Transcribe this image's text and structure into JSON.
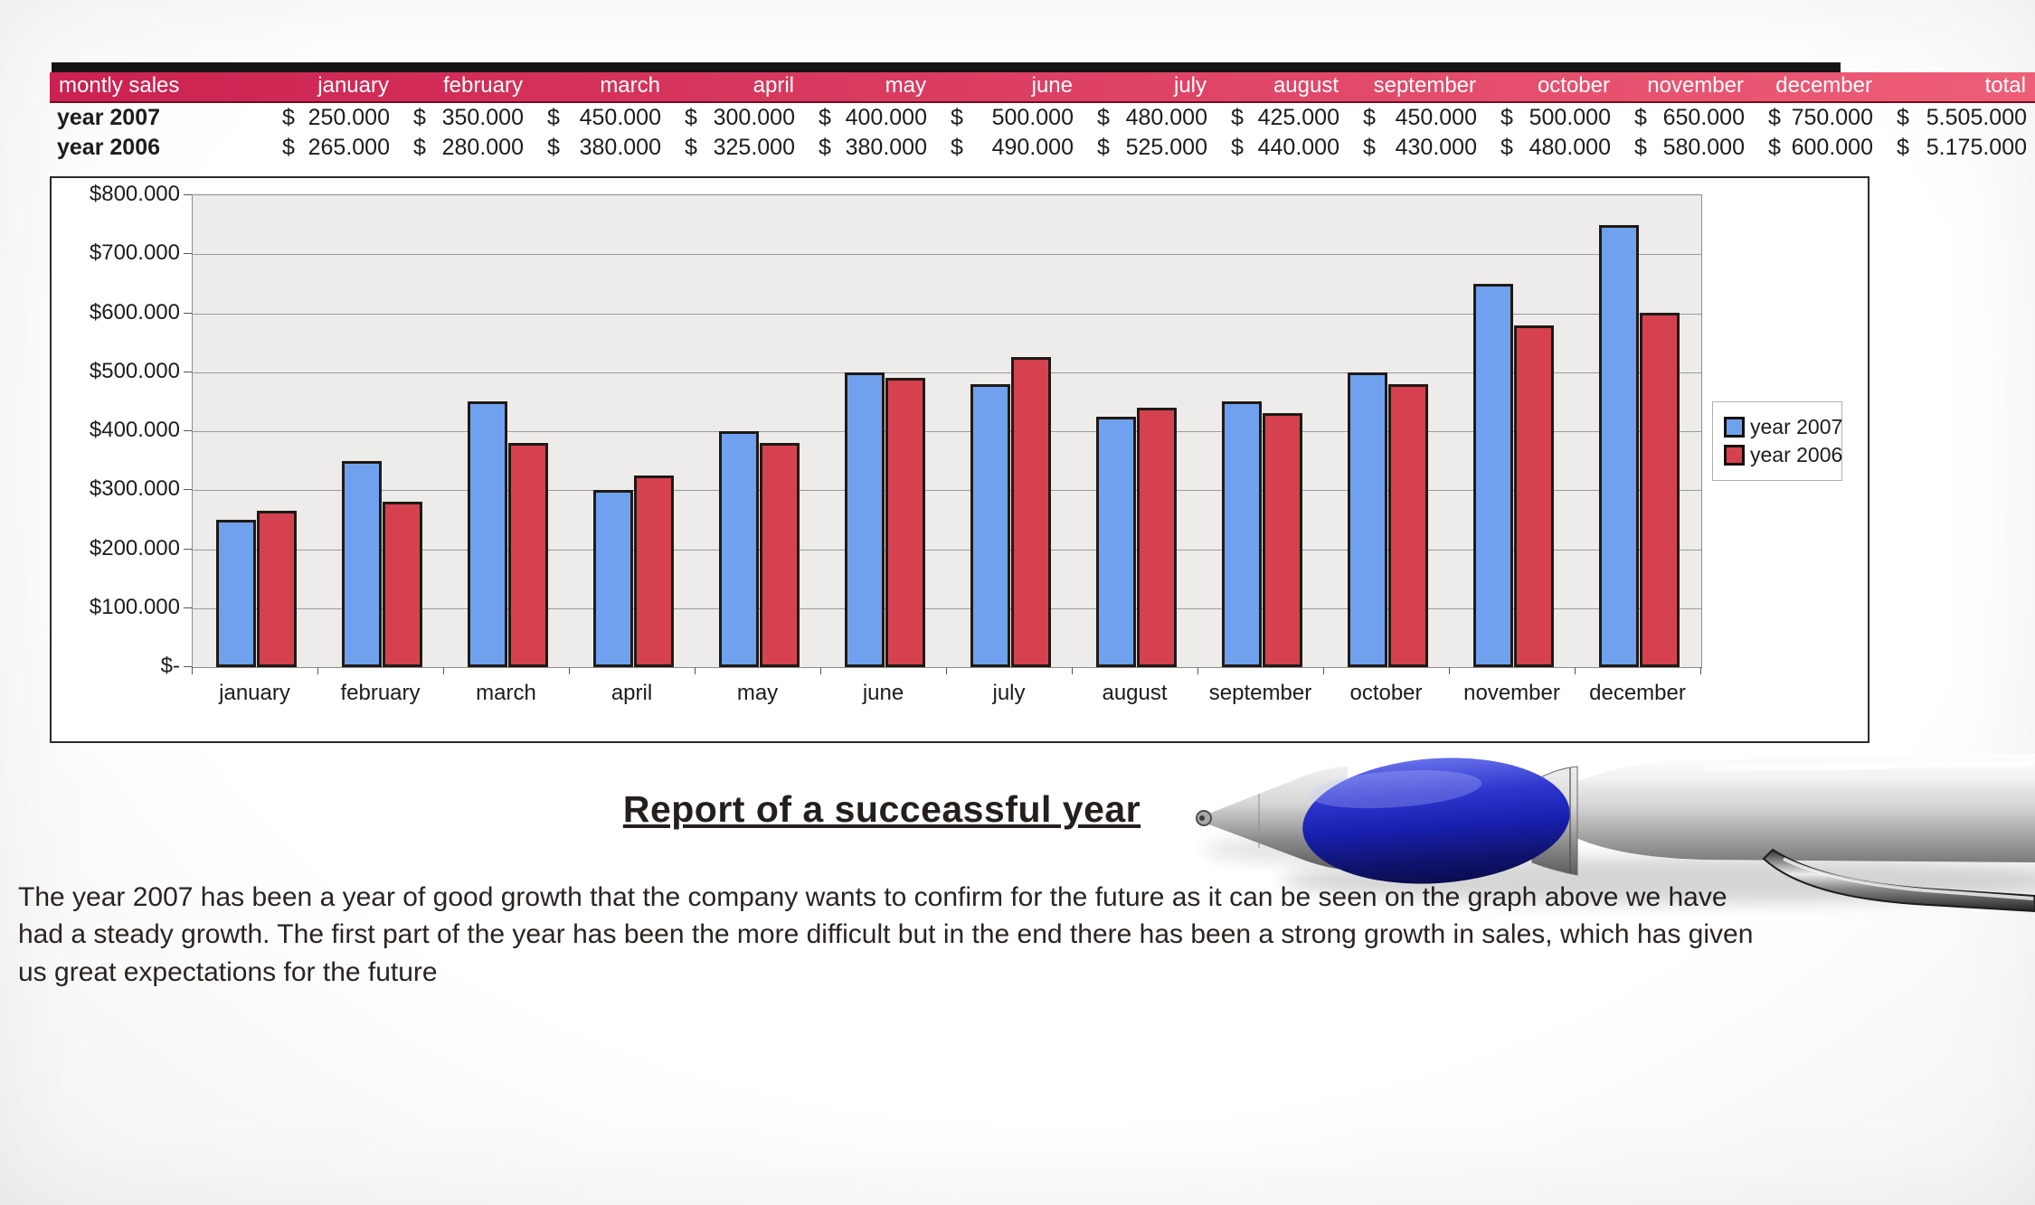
{
  "table": {
    "title_cell": "montly sales",
    "months": [
      "january",
      "february",
      "march",
      "april",
      "may",
      "june",
      "july",
      "august",
      "september",
      "october",
      "november",
      "december"
    ],
    "total_label": "total",
    "currency": "$",
    "rows": [
      {
        "label": "year 2007",
        "values": [
          "250.000",
          "350.000",
          "450.000",
          "300.000",
          "400.000",
          "500.000",
          "480.000",
          "425.000",
          "450.000",
          "500.000",
          "650.000",
          "750.000"
        ],
        "total": "5.505.000"
      },
      {
        "label": "year 2006",
        "values": [
          "265.000",
          "280.000",
          "380.000",
          "325.000",
          "380.000",
          "490.000",
          "525.000",
          "440.000",
          "430.000",
          "480.000",
          "580.000",
          "600.000"
        ],
        "total": "5.175.000"
      }
    ]
  },
  "chart_data": {
    "type": "bar",
    "categories": [
      "january",
      "february",
      "march",
      "april",
      "may",
      "june",
      "july",
      "august",
      "september",
      "october",
      "november",
      "december"
    ],
    "series": [
      {
        "name": "year 2007",
        "color": "#6fa1ee",
        "values": [
          250000,
          350000,
          450000,
          300000,
          400000,
          500000,
          480000,
          425000,
          450000,
          500000,
          650000,
          750000
        ]
      },
      {
        "name": "year 2006",
        "color": "#d6414f",
        "values": [
          265000,
          280000,
          380000,
          325000,
          380000,
          490000,
          525000,
          440000,
          430000,
          480000,
          580000,
          600000
        ]
      }
    ],
    "title": "",
    "xlabel": "",
    "ylabel": "",
    "ylim": [
      0,
      800000
    ],
    "y_tick_labels": [
      "$800.000",
      "$700.000",
      "$600.000",
      "$500.000",
      "$400.000",
      "$300.000",
      "$200.000",
      "$100.000",
      "$-"
    ],
    "grid": true,
    "legend_position": "right",
    "plot_bg": "#edecea"
  },
  "report": {
    "title": "Report of a succeassful year",
    "body": "The year 2007 has been a year of good growth that the company wants to confirm for the future as it can be seen on the graph above we have had a steady growth. The first part of the year has been the more difficult but in the end there has been a strong growth in sales,  which has given us great expectations for the future"
  },
  "colors": {
    "header_gradient_start": "#cb2150",
    "header_gradient_end": "#ee5e77",
    "header_text": "#ffffff",
    "table_text": "#1c1c1c",
    "chart_border": "#2b2b2b",
    "gridline": "#9b9b9b",
    "bar_2007": "#6fa1ee",
    "bar_2006": "#d6414f",
    "pen_grip_blue": "#1b22b4"
  }
}
